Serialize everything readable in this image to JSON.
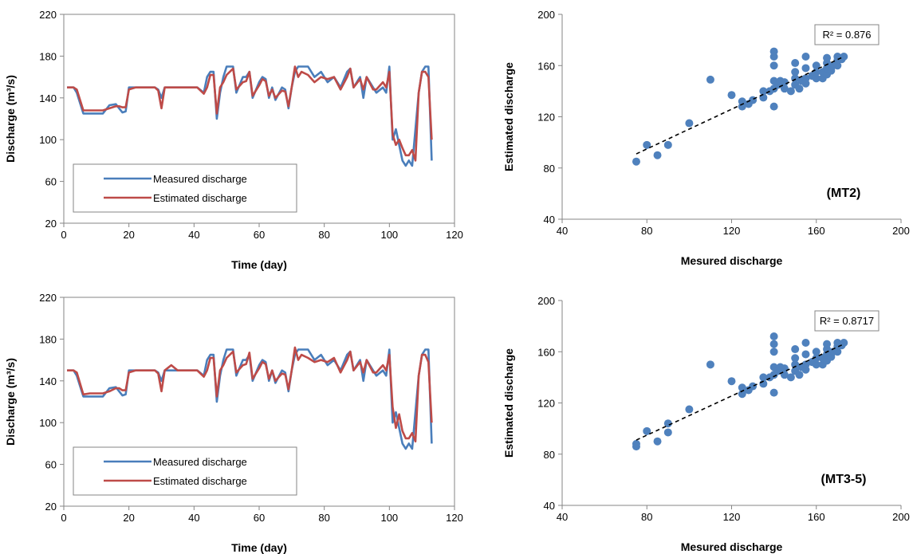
{
  "colors": {
    "measured": "#4a7ebb",
    "estimated": "#be4b48",
    "scatter": "#4f81bd",
    "axis": "#868686",
    "trend": "#000000"
  },
  "chart_data": [
    {
      "type": "line",
      "xlabel": "Time (day)",
      "ylabel": "Discharge (m³/s)",
      "xlim": [
        0,
        120
      ],
      "ylim": [
        20,
        220
      ],
      "xticks": [
        "0",
        "20",
        "40",
        "60",
        "80",
        "100",
        "120"
      ],
      "yticks": [
        "20",
        "60",
        "100",
        "140",
        "180",
        "220"
      ],
      "grid": false,
      "legend_position": "bottom-left",
      "series": [
        {
          "name": "Measured discharge",
          "color": "#4a7ebb",
          "x": [
            1,
            3,
            4,
            6,
            8,
            10,
            12,
            14,
            16,
            17,
            18,
            19,
            20,
            22,
            24,
            26,
            28,
            29,
            30,
            31,
            33,
            35,
            37,
            39,
            41,
            43,
            44,
            45,
            46,
            47,
            48,
            49,
            50,
            52,
            53,
            55,
            56,
            57,
            58,
            60,
            61,
            62,
            63,
            64,
            65,
            67,
            68,
            69,
            70,
            71,
            72,
            73,
            75,
            77,
            79,
            81,
            83,
            85,
            87,
            88,
            89,
            91,
            92,
            93,
            95,
            96,
            98,
            99,
            100,
            101,
            102,
            103,
            104,
            105,
            106,
            107,
            108,
            109,
            110,
            111,
            112,
            113
          ],
          "y": [
            150,
            150,
            145,
            125,
            125,
            125,
            125,
            133,
            134,
            130,
            126,
            127,
            150,
            150,
            150,
            150,
            150,
            148,
            140,
            150,
            150,
            150,
            150,
            150,
            150,
            145,
            160,
            165,
            165,
            120,
            145,
            160,
            170,
            170,
            145,
            160,
            160,
            165,
            140,
            155,
            160,
            158,
            140,
            150,
            138,
            150,
            148,
            130,
            150,
            165,
            170,
            170,
            170,
            160,
            165,
            155,
            160,
            150,
            165,
            168,
            150,
            160,
            140,
            160,
            150,
            145,
            150,
            145,
            170,
            100,
            110,
            95,
            80,
            75,
            80,
            75,
            110,
            145,
            165,
            170,
            170,
            80
          ]
        },
        {
          "name": "Estimated discharge",
          "color": "#be4b48",
          "x": [
            1,
            3,
            4,
            6,
            8,
            10,
            12,
            14,
            16,
            17,
            18,
            19,
            20,
            22,
            24,
            26,
            28,
            29,
            30,
            31,
            33,
            35,
            37,
            39,
            41,
            43,
            44,
            45,
            46,
            47,
            48,
            49,
            50,
            52,
            53,
            55,
            56,
            57,
            58,
            60,
            61,
            62,
            63,
            64,
            65,
            67,
            68,
            69,
            70,
            71,
            72,
            73,
            75,
            77,
            79,
            81,
            83,
            85,
            87,
            88,
            89,
            91,
            92,
            93,
            95,
            96,
            98,
            99,
            100,
            101,
            102,
            103,
            104,
            105,
            106,
            107,
            108,
            109,
            110,
            111,
            112,
            113
          ],
          "y": [
            150,
            150,
            148,
            128,
            128,
            128,
            128,
            130,
            132,
            132,
            131,
            131,
            148,
            150,
            150,
            150,
            150,
            147,
            130,
            150,
            150,
            150,
            150,
            150,
            150,
            144,
            150,
            162,
            162,
            125,
            150,
            155,
            162,
            168,
            148,
            155,
            156,
            165,
            142,
            152,
            158,
            156,
            142,
            148,
            140,
            147,
            146,
            132,
            150,
            170,
            160,
            165,
            162,
            155,
            160,
            158,
            160,
            148,
            160,
            168,
            150,
            158,
            148,
            160,
            148,
            148,
            155,
            150,
            165,
            105,
            95,
            100,
            92,
            85,
            85,
            90,
            80,
            145,
            165,
            165,
            160,
            100
          ]
        }
      ]
    },
    {
      "type": "scatter",
      "xlabel": "Mesured discharge",
      "ylabel": "Estimated discharge",
      "xlim": [
        40,
        200
      ],
      "ylim": [
        40,
        200
      ],
      "xticks": [
        "40",
        "80",
        "120",
        "160",
        "200"
      ],
      "yticks": [
        "40",
        "80",
        "120",
        "160",
        "200"
      ],
      "annotation": "R² = 0.876",
      "panel_label": "(MT2)",
      "trendline": {
        "x": [
          75,
          173
        ],
        "y": [
          91,
          167
        ]
      },
      "points": [
        [
          75,
          85
        ],
        [
          80,
          98
        ],
        [
          85,
          90
        ],
        [
          90,
          98
        ],
        [
          100,
          115
        ],
        [
          110,
          149
        ],
        [
          120,
          137
        ],
        [
          125,
          128
        ],
        [
          125,
          132
        ],
        [
          128,
          130
        ],
        [
          130,
          133
        ],
        [
          135,
          135
        ],
        [
          135,
          140
        ],
        [
          138,
          140
        ],
        [
          140,
          128
        ],
        [
          140,
          142
        ],
        [
          140,
          148
        ],
        [
          140,
          160
        ],
        [
          140,
          167
        ],
        [
          140,
          171
        ],
        [
          142,
          145
        ],
        [
          143,
          148
        ],
        [
          145,
          142
        ],
        [
          145,
          147
        ],
        [
          148,
          140
        ],
        [
          150,
          145
        ],
        [
          150,
          150
        ],
        [
          150,
          155
        ],
        [
          150,
          162
        ],
        [
          152,
          142
        ],
        [
          153,
          148
        ],
        [
          155,
          146
        ],
        [
          155,
          150
        ],
        [
          155,
          158
        ],
        [
          155,
          167
        ],
        [
          158,
          152
        ],
        [
          160,
          150
        ],
        [
          160,
          155
        ],
        [
          160,
          160
        ],
        [
          163,
          150
        ],
        [
          163,
          155
        ],
        [
          165,
          153
        ],
        [
          165,
          158
        ],
        [
          165,
          162
        ],
        [
          165,
          166
        ],
        [
          167,
          156
        ],
        [
          168,
          160
        ],
        [
          170,
          160
        ],
        [
          170,
          164
        ],
        [
          170,
          167
        ],
        [
          172,
          165
        ],
        [
          173,
          167
        ]
      ]
    },
    {
      "type": "line",
      "xlabel": "Time (day)",
      "ylabel": "Discharge (m³/s)",
      "xlim": [
        0,
        120
      ],
      "ylim": [
        20,
        220
      ],
      "xticks": [
        "0",
        "20",
        "40",
        "60",
        "80",
        "100",
        "120"
      ],
      "yticks": [
        "20",
        "60",
        "100",
        "140",
        "180",
        "220"
      ],
      "grid": false,
      "legend_position": "bottom-left",
      "series": [
        {
          "name": "Measured discharge",
          "color": "#4a7ebb",
          "x": [
            1,
            3,
            4,
            6,
            8,
            10,
            12,
            14,
            16,
            17,
            18,
            19,
            20,
            22,
            24,
            26,
            28,
            29,
            30,
            31,
            33,
            35,
            37,
            39,
            41,
            43,
            44,
            45,
            46,
            47,
            48,
            49,
            50,
            52,
            53,
            55,
            56,
            57,
            58,
            60,
            61,
            62,
            63,
            64,
            65,
            67,
            68,
            69,
            70,
            71,
            72,
            73,
            75,
            77,
            79,
            81,
            83,
            85,
            87,
            88,
            89,
            91,
            92,
            93,
            95,
            96,
            98,
            99,
            100,
            101,
            102,
            103,
            104,
            105,
            106,
            107,
            108,
            109,
            110,
            111,
            112,
            113
          ],
          "y": [
            150,
            150,
            145,
            125,
            125,
            125,
            125,
            133,
            134,
            130,
            126,
            127,
            150,
            150,
            150,
            150,
            150,
            148,
            140,
            150,
            150,
            150,
            150,
            150,
            150,
            145,
            160,
            165,
            165,
            120,
            145,
            160,
            170,
            170,
            145,
            160,
            160,
            165,
            140,
            155,
            160,
            158,
            140,
            150,
            138,
            150,
            148,
            130,
            150,
            165,
            170,
            170,
            170,
            160,
            165,
            155,
            160,
            150,
            165,
            168,
            150,
            160,
            140,
            160,
            150,
            145,
            150,
            145,
            170,
            100,
            110,
            95,
            80,
            75,
            80,
            75,
            110,
            145,
            165,
            170,
            170,
            80
          ]
        },
        {
          "name": "Estimated discharge",
          "color": "#be4b48",
          "x": [
            1,
            3,
            4,
            6,
            8,
            10,
            12,
            14,
            16,
            17,
            18,
            19,
            20,
            22,
            24,
            26,
            28,
            29,
            30,
            31,
            33,
            35,
            37,
            39,
            41,
            43,
            44,
            45,
            46,
            47,
            48,
            49,
            50,
            52,
            53,
            55,
            56,
            57,
            58,
            60,
            61,
            62,
            63,
            64,
            65,
            67,
            68,
            69,
            70,
            71,
            72,
            73,
            75,
            77,
            79,
            81,
            83,
            85,
            87,
            88,
            89,
            91,
            92,
            93,
            95,
            96,
            98,
            99,
            100,
            101,
            102,
            103,
            104,
            105,
            106,
            107,
            108,
            109,
            110,
            111,
            112,
            113
          ],
          "y": [
            150,
            150,
            148,
            127,
            128,
            128,
            128,
            130,
            133,
            133,
            131,
            131,
            148,
            150,
            150,
            150,
            150,
            147,
            130,
            150,
            155,
            150,
            150,
            150,
            150,
            144,
            150,
            162,
            162,
            125,
            150,
            155,
            162,
            168,
            148,
            155,
            156,
            167,
            142,
            152,
            158,
            156,
            142,
            150,
            140,
            147,
            146,
            132,
            150,
            172,
            160,
            165,
            162,
            158,
            160,
            158,
            162,
            148,
            160,
            168,
            150,
            158,
            148,
            160,
            148,
            148,
            155,
            150,
            165,
            115,
            95,
            108,
            92,
            85,
            85,
            90,
            82,
            145,
            165,
            165,
            158,
            100
          ]
        }
      ]
    },
    {
      "type": "scatter",
      "xlabel": "Mesured discharge",
      "ylabel": "Estimated discharge",
      "xlim": [
        40,
        200
      ],
      "ylim": [
        40,
        200
      ],
      "xticks": [
        "40",
        "80",
        "120",
        "160",
        "200"
      ],
      "yticks": [
        "40",
        "80",
        "120",
        "160",
        "200"
      ],
      "annotation": "R² = 0.8717",
      "panel_label": "(MT3-5)",
      "trendline": {
        "x": [
          75,
          173
        ],
        "y": [
          91,
          166
        ]
      },
      "points": [
        [
          75,
          86
        ],
        [
          75,
          88
        ],
        [
          80,
          98
        ],
        [
          85,
          90
        ],
        [
          90,
          97
        ],
        [
          90,
          104
        ],
        [
          100,
          115
        ],
        [
          110,
          150
        ],
        [
          120,
          137
        ],
        [
          125,
          127
        ],
        [
          125,
          132
        ],
        [
          128,
          130
        ],
        [
          130,
          133
        ],
        [
          135,
          135
        ],
        [
          135,
          140
        ],
        [
          138,
          140
        ],
        [
          140,
          128
        ],
        [
          140,
          142
        ],
        [
          140,
          148
        ],
        [
          140,
          160
        ],
        [
          140,
          166
        ],
        [
          140,
          172
        ],
        [
          142,
          145
        ],
        [
          143,
          148
        ],
        [
          145,
          142
        ],
        [
          145,
          147
        ],
        [
          148,
          140
        ],
        [
          150,
          145
        ],
        [
          150,
          150
        ],
        [
          150,
          155
        ],
        [
          150,
          162
        ],
        [
          152,
          142
        ],
        [
          153,
          148
        ],
        [
          155,
          146
        ],
        [
          155,
          150
        ],
        [
          155,
          158
        ],
        [
          155,
          167
        ],
        [
          158,
          152
        ],
        [
          160,
          150
        ],
        [
          160,
          155
        ],
        [
          160,
          160
        ],
        [
          163,
          150
        ],
        [
          163,
          155
        ],
        [
          165,
          153
        ],
        [
          165,
          158
        ],
        [
          165,
          162
        ],
        [
          165,
          166
        ],
        [
          167,
          156
        ],
        [
          168,
          160
        ],
        [
          170,
          160
        ],
        [
          170,
          164
        ],
        [
          170,
          167
        ],
        [
          172,
          165
        ],
        [
          173,
          167
        ]
      ]
    }
  ]
}
